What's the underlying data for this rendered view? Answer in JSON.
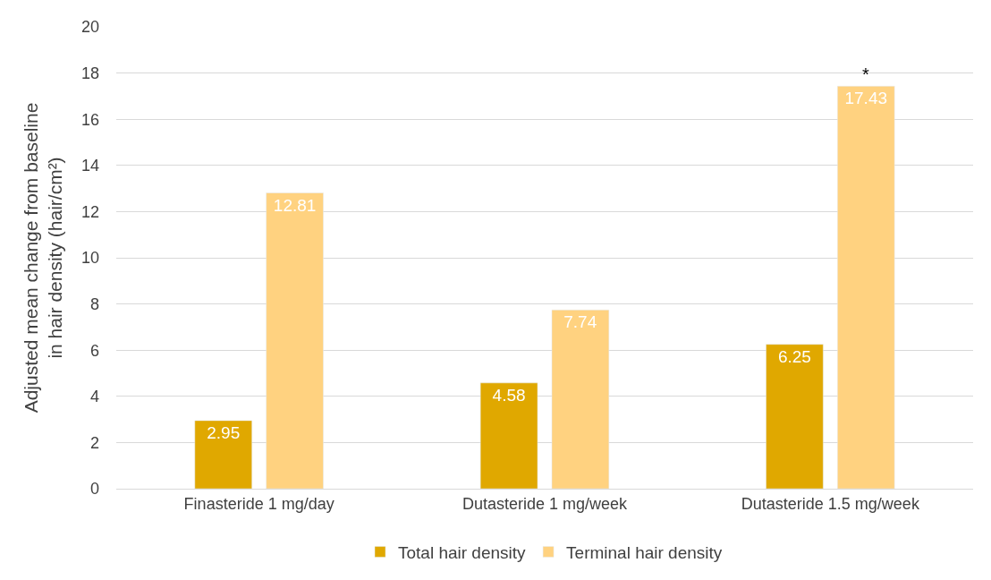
{
  "chart_data": {
    "type": "bar",
    "ylabel": "Adjusted mean change from baseline in hair density (hair/cm²)",
    "categories": [
      "Finasteride 1 mg/day",
      "Dutasteride 1 mg/week",
      "Dutasteride 1.5 mg/week"
    ],
    "series": [
      {
        "name": "Total hair density",
        "color": "#e0a800",
        "values": [
          2.95,
          4.58,
          6.25
        ]
      },
      {
        "name": "Terminal hair density",
        "color": "#ffd280",
        "values": [
          12.81,
          7.74,
          17.43
        ]
      }
    ],
    "ylim": [
      0,
      20
    ],
    "yticks": [
      0,
      2,
      4,
      6,
      8,
      10,
      12,
      14,
      16,
      18,
      20
    ],
    "grid": "y",
    "legend": "bottom",
    "data_labels": true,
    "annotations": [
      "*"
    ]
  }
}
